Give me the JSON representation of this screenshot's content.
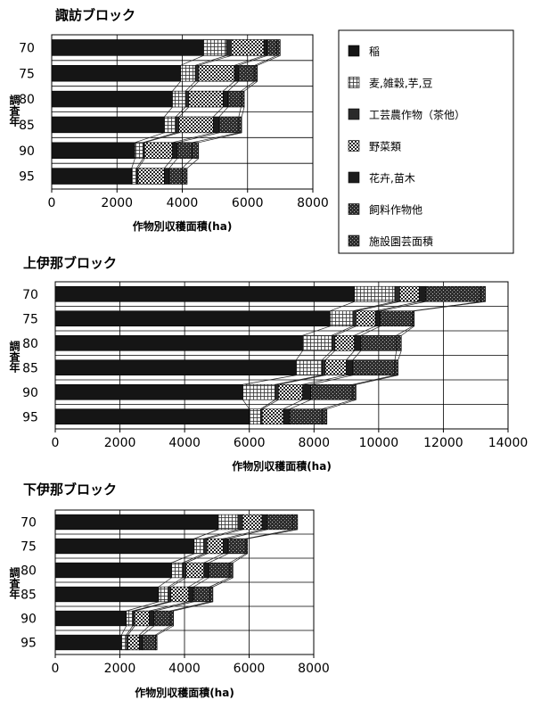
{
  "legend": {
    "items": [
      {
        "label": "稲",
        "color": "#151515",
        "pattern": "solid"
      },
      {
        "label": "麦,雑穀,芋,豆",
        "color": "#e6e6e6",
        "pattern": "grid"
      },
      {
        "label": "工芸農作物（茶他）",
        "color": "#2a2a2a",
        "pattern": "solid"
      },
      {
        "label": "野菜類",
        "color": "#bdbdbd",
        "pattern": "check"
      },
      {
        "label": "花卉,苗木",
        "color": "#1c1c1c",
        "pattern": "solid"
      },
      {
        "label": "飼料作物他",
        "color": "#4a4a4a",
        "pattern": "dots"
      },
      {
        "label": "施設園芸面積",
        "color": "#3a3a3a",
        "pattern": "dots"
      }
    ]
  },
  "chart_data": [
    {
      "type": "bar",
      "stacked": true,
      "orientation": "horizontal",
      "title": "諏訪ブロック",
      "xlabel": "作物別収穫面積(ha)",
      "ylabel": "調査年",
      "categories": [
        "70",
        "75",
        "80",
        "85",
        "90",
        "95"
      ],
      "xlim": [
        0,
        8000
      ],
      "xticks": [
        "0",
        "2000",
        "4000",
        "6000",
        "8000"
      ],
      "grid": true,
      "legend": "right",
      "series": [
        {
          "name": "稲",
          "values": [
            4650,
            3950,
            3700,
            3450,
            2550,
            2450
          ]
        },
        {
          "name": "麦,雑穀,芋,豆",
          "values": [
            700,
            450,
            400,
            350,
            250,
            150
          ]
        },
        {
          "name": "工芸農作物（茶他）",
          "values": [
            150,
            100,
            100,
            100,
            50,
            50
          ]
        },
        {
          "name": "野菜類",
          "values": [
            1000,
            1100,
            1050,
            1050,
            850,
            800
          ]
        },
        {
          "name": "花卉,苗木",
          "values": [
            100,
            120,
            150,
            180,
            150,
            150
          ]
        },
        {
          "name": "飼料作物他",
          "values": [
            300,
            500,
            400,
            600,
            450,
            400
          ]
        },
        {
          "name": "施設園芸面積",
          "values": [
            100,
            80,
            100,
            90,
            200,
            150
          ]
        }
      ]
    },
    {
      "type": "bar",
      "stacked": true,
      "orientation": "horizontal",
      "title": "上伊那ブロック",
      "xlabel": "作物別収穫面積(ha)",
      "ylabel": "調査年",
      "categories": [
        "70",
        "75",
        "80",
        "85",
        "90",
        "95"
      ],
      "xlim": [
        0,
        14000
      ],
      "xticks": [
        "0",
        "2000",
        "4000",
        "6000",
        "8000",
        "10000",
        "12000",
        "14000"
      ],
      "grid": true,
      "series": [
        {
          "name": "稲",
          "values": [
            9250,
            8500,
            7650,
            7450,
            5800,
            6000
          ]
        },
        {
          "name": "麦,雑穀,芋,豆",
          "values": [
            1250,
            700,
            900,
            800,
            1000,
            350
          ]
        },
        {
          "name": "工芸農作物（茶他）",
          "values": [
            150,
            100,
            100,
            100,
            100,
            50
          ]
        },
        {
          "name": "野菜類",
          "values": [
            600,
            600,
            600,
            650,
            750,
            650
          ]
        },
        {
          "name": "花卉,苗木",
          "values": [
            200,
            150,
            200,
            200,
            250,
            200
          ]
        },
        {
          "name": "飼料作物他",
          "values": [
            1700,
            1000,
            1100,
            1300,
            1300,
            1000
          ]
        },
        {
          "name": "施設園芸面積",
          "values": [
            150,
            50,
            150,
            100,
            100,
            150
          ]
        }
      ]
    },
    {
      "type": "bar",
      "stacked": true,
      "orientation": "horizontal",
      "title": "下伊那ブロック",
      "xlabel": "作物別収穫面積(ha)",
      "ylabel": "調査年",
      "categories": [
        "70",
        "75",
        "80",
        "85",
        "90",
        "95"
      ],
      "xlim": [
        0,
        8000
      ],
      "xticks": [
        "0",
        "2000",
        "4000",
        "6000",
        "8000"
      ],
      "grid": true,
      "series": [
        {
          "name": "稲",
          "values": [
            5050,
            4300,
            3600,
            3200,
            2200,
            2050
          ]
        },
        {
          "name": "麦,雑穀,芋,豆",
          "values": [
            600,
            300,
            350,
            300,
            200,
            150
          ]
        },
        {
          "name": "工芸農作物（茶他）",
          "values": [
            150,
            100,
            100,
            80,
            60,
            50
          ]
        },
        {
          "name": "野菜類",
          "values": [
            600,
            500,
            550,
            550,
            450,
            350
          ]
        },
        {
          "name": "花卉,苗木",
          "values": [
            150,
            150,
            150,
            150,
            150,
            100
          ]
        },
        {
          "name": "飼料作物他",
          "values": [
            800,
            550,
            650,
            500,
            500,
            400
          ]
        },
        {
          "name": "施設園芸面積",
          "values": [
            150,
            50,
            100,
            100,
            100,
            50
          ]
        }
      ]
    }
  ]
}
